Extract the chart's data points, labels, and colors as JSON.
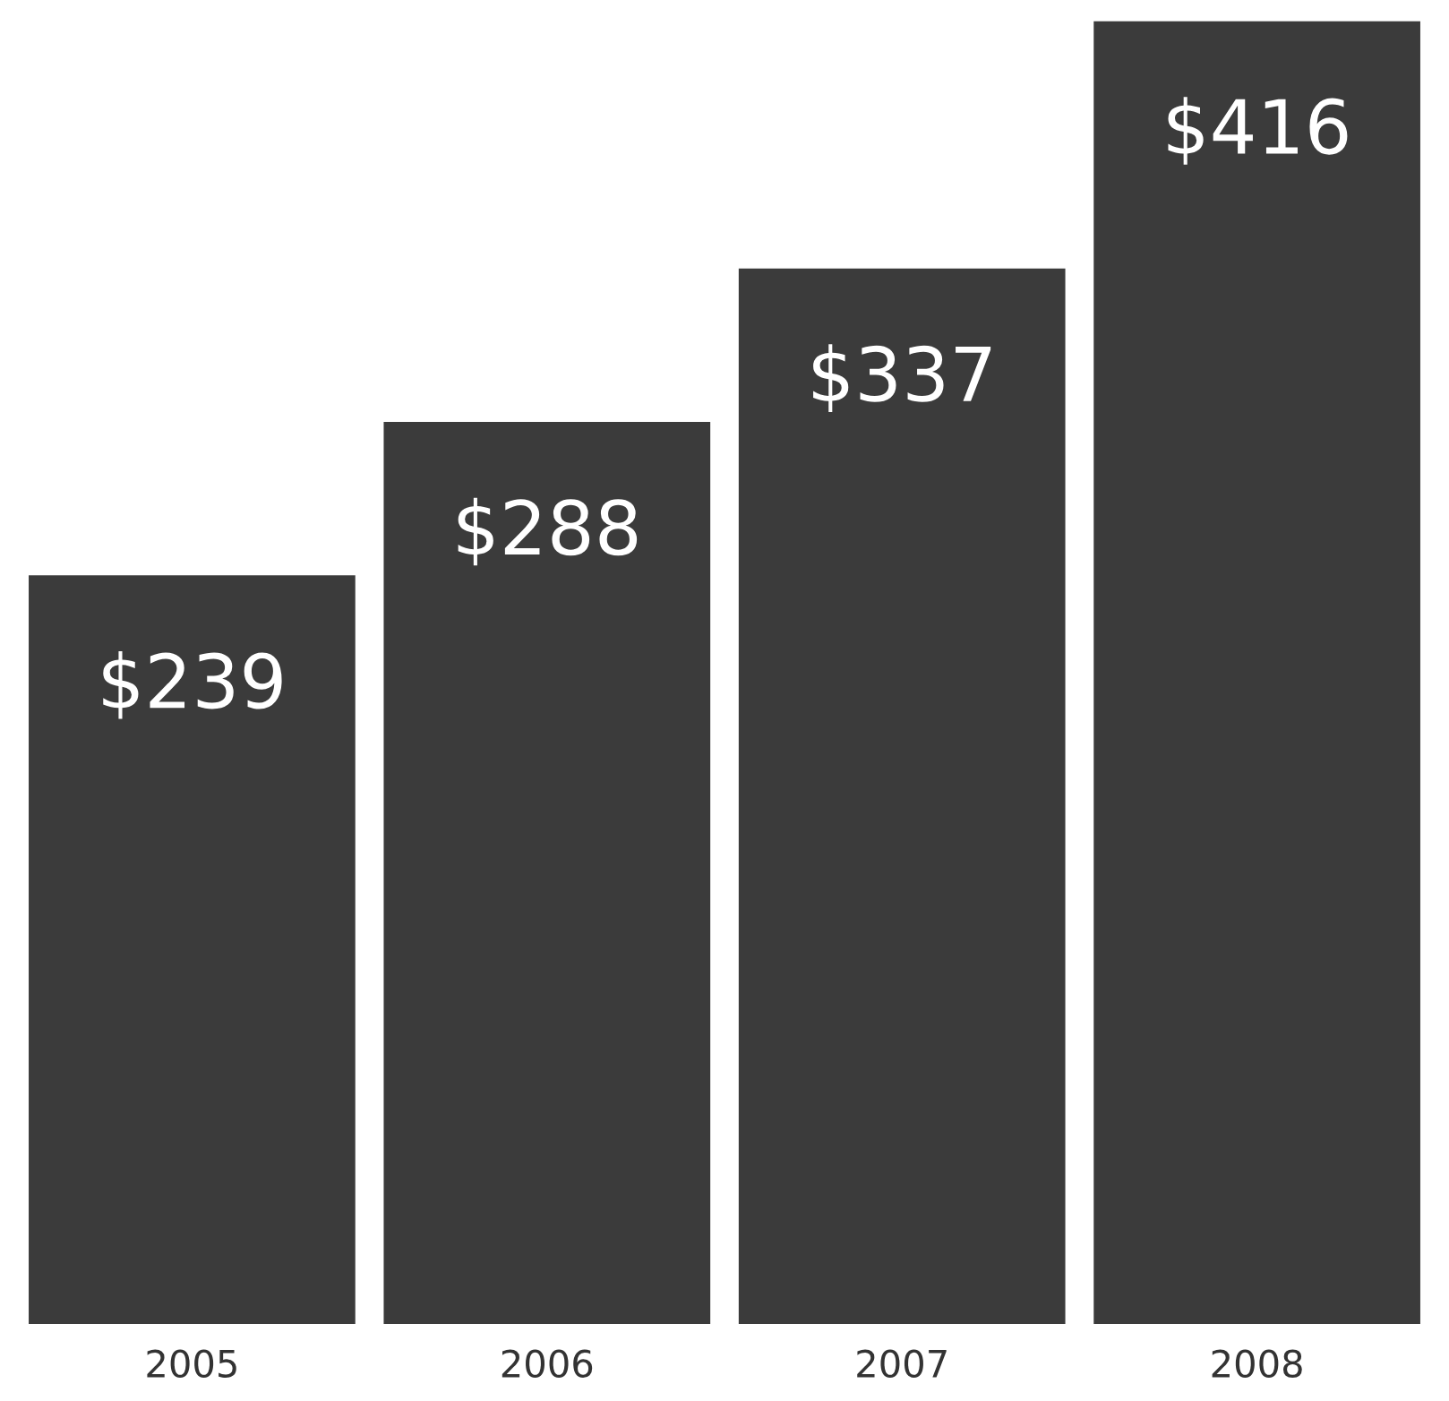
{
  "chart_data": {
    "type": "bar",
    "categories": [
      "2005",
      "2006",
      "2007",
      "2008"
    ],
    "values": [
      239,
      288,
      337,
      416
    ],
    "value_labels": [
      "$239",
      "$288",
      "$337",
      "$416"
    ],
    "color": "#3b3b3b",
    "tick_labels": "x",
    "grid": false,
    "legend": false
  }
}
